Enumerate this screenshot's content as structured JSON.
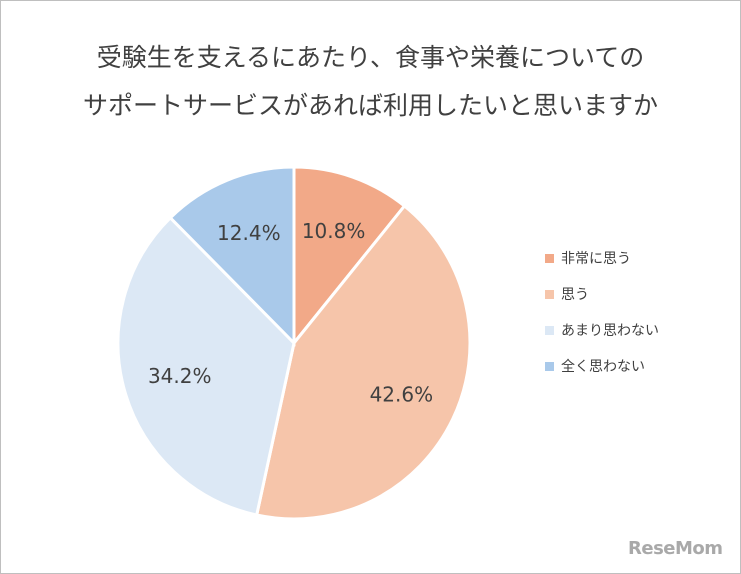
{
  "chart_data": {
    "type": "pie",
    "title_lines": [
      "受験生を支えるにあたり、食事や栄養についての",
      "サポートサービスがあれば利用したいと思いますか"
    ],
    "categories": [
      "非常に思う",
      "思う",
      "あまり思わない",
      "全く思わない"
    ],
    "values": [
      10.8,
      42.6,
      34.2,
      12.4
    ],
    "value_labels": [
      "10.8%",
      "42.6%",
      "34.2%",
      "12.4%"
    ],
    "colors": [
      "#f2a988",
      "#f6c5aa",
      "#dce8f5",
      "#a9c9ea"
    ],
    "legend_position": "right"
  },
  "watermark": "ReseMom"
}
